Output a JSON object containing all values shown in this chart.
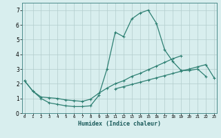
{
  "xlabel": "Humidex (Indice chaleur)",
  "x_values": [
    0,
    1,
    2,
    3,
    4,
    5,
    6,
    7,
    8,
    9,
    10,
    11,
    12,
    13,
    14,
    15,
    16,
    17,
    18,
    19,
    20,
    21,
    22,
    23
  ],
  "line1_y": [
    2.2,
    1.5,
    1.0,
    0.7,
    0.6,
    0.5,
    0.45,
    0.45,
    0.5,
    1.2,
    3.0,
    5.5,
    5.2,
    6.4,
    6.8,
    7.0,
    6.1,
    4.3,
    3.5,
    2.9,
    2.9,
    3.0,
    2.5,
    null
  ],
  "line2_y": [
    2.2,
    1.5,
    1.1,
    1.05,
    1.0,
    0.9,
    0.85,
    0.8,
    0.95,
    1.35,
    1.7,
    2.0,
    2.2,
    2.5,
    2.7,
    2.95,
    3.2,
    3.45,
    3.7,
    3.9,
    null,
    null,
    null,
    null
  ],
  "line3_y": [
    null,
    null,
    null,
    null,
    null,
    null,
    null,
    null,
    null,
    null,
    null,
    1.65,
    1.8,
    1.95,
    2.1,
    2.25,
    2.4,
    2.55,
    2.7,
    2.85,
    3.0,
    3.15,
    3.3,
    2.4
  ],
  "line_color": "#2d7f72",
  "bg_color": "#d8eeee",
  "grid_color": "#b2cccc",
  "ylim": [
    0,
    7.5
  ],
  "xlim": [
    -0.3,
    23.3
  ],
  "yticks": [
    0,
    1,
    2,
    3,
    4,
    5,
    6,
    7
  ],
  "xticks": [
    0,
    1,
    2,
    3,
    4,
    5,
    6,
    7,
    8,
    9,
    10,
    11,
    12,
    13,
    14,
    15,
    16,
    17,
    18,
    19,
    20,
    21,
    22,
    23
  ],
  "marker": "+",
  "lw": 0.9,
  "ms": 3.5,
  "mew": 0.8
}
